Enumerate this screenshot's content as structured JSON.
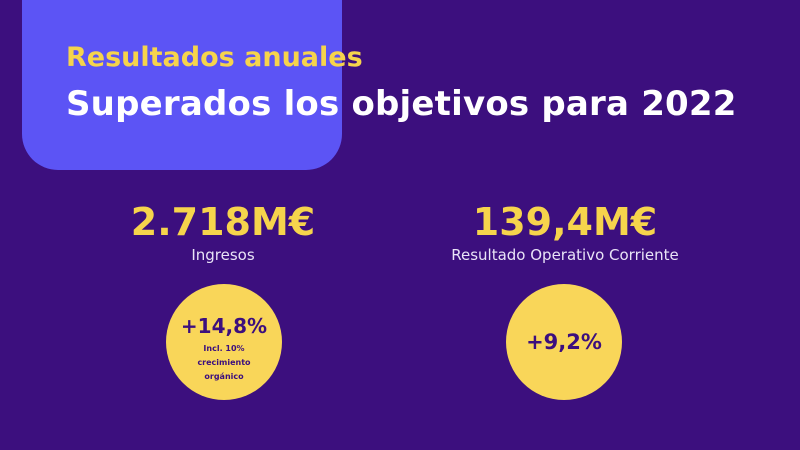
{
  "header": {
    "eyebrow": "Resultados anuales",
    "title": "Superados los objetivos para 2022"
  },
  "metrics": [
    {
      "value": "2.718M€",
      "label": "Ingresos",
      "badge": {
        "value": "+14,8%",
        "note": "Incl. 10% crecimiento orgánico"
      }
    },
    {
      "value": "139,4M€",
      "label": "Resultado Operativo Corriente",
      "badge": {
        "value": "+9,2%"
      }
    }
  ],
  "colors": {
    "background": "#3c0f7e",
    "accent_tab": "#5c54f5",
    "highlight": "#f6d44c",
    "badge": "#f9d659",
    "title": "#ffffff"
  }
}
